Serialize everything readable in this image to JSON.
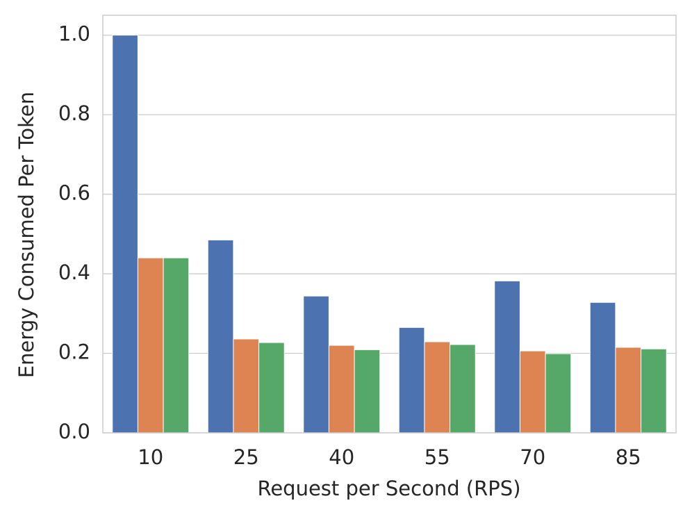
{
  "chart_data": {
    "type": "bar",
    "x_label": "Request per Second (RPS)",
    "y_label": "Energy Consumed Per Token",
    "categories": [
      "10",
      "25",
      "40",
      "55",
      "70",
      "85"
    ],
    "series": [
      {
        "color": "#4c72b0",
        "values": [
          1.0,
          0.485,
          0.344,
          0.265,
          0.382,
          0.328
        ]
      },
      {
        "color": "#dd8452",
        "values": [
          0.44,
          0.236,
          0.22,
          0.229,
          0.206,
          0.215
        ]
      },
      {
        "color": "#55a868",
        "values": [
          0.44,
          0.227,
          0.209,
          0.222,
          0.199,
          0.211
        ]
      }
    ],
    "ylim": [
      0,
      1.05
    ],
    "yticks": [
      {
        "value": 0,
        "label": "0.0"
      },
      0.2,
      0.4,
      0.6,
      0.8,
      {
        "value": 1,
        "label": "1.0"
      }
    ],
    "grid": true
  }
}
